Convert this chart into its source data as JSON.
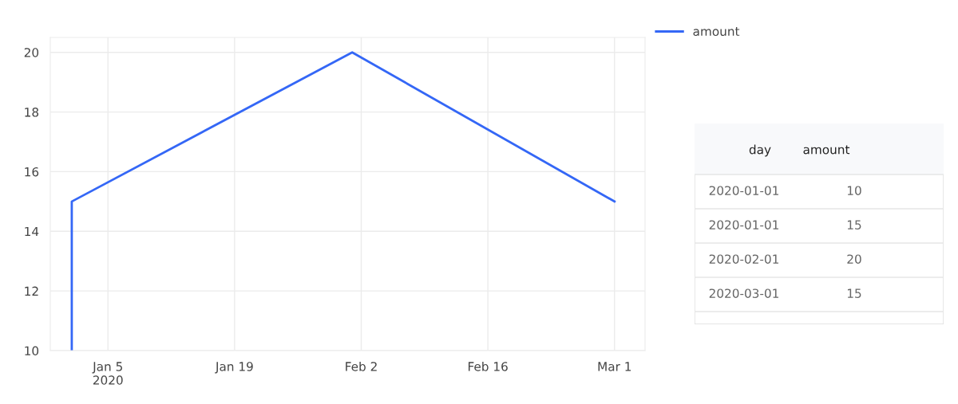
{
  "chart_data": [
    {
      "type": "line",
      "x": [
        "2020-01-01",
        "2020-01-01",
        "2020-02-01",
        "2020-03-01"
      ],
      "series": [
        {
          "name": "amount",
          "color": "#3467f6",
          "values": [
            10,
            15,
            20,
            15
          ]
        }
      ],
      "xlim": [
        "2019-12-29T15:00",
        "2020-03-04T09:00"
      ],
      "xticks": [
        {
          "value": "2020-01-05",
          "label": "Jan 5\n2020"
        },
        {
          "value": "2020-01-19",
          "label": "Jan 19"
        },
        {
          "value": "2020-02-02",
          "label": "Feb 2"
        },
        {
          "value": "2020-02-16",
          "label": "Feb 16"
        },
        {
          "value": "2020-03-01",
          "label": "Mar 1"
        }
      ],
      "ylim": [
        10,
        20.5
      ],
      "yticks": [
        10,
        12,
        14,
        16,
        18,
        20
      ],
      "grid": true,
      "legend": "top right",
      "marker": "none",
      "line_style": "solid"
    },
    {
      "type": "other",
      "annotations": [
        "day",
        "amount",
        "2020-01-01",
        "10",
        "2020-01-01",
        "15",
        "2020-02-01",
        "20",
        "2020-03-01",
        "15"
      ]
    }
  ]
}
